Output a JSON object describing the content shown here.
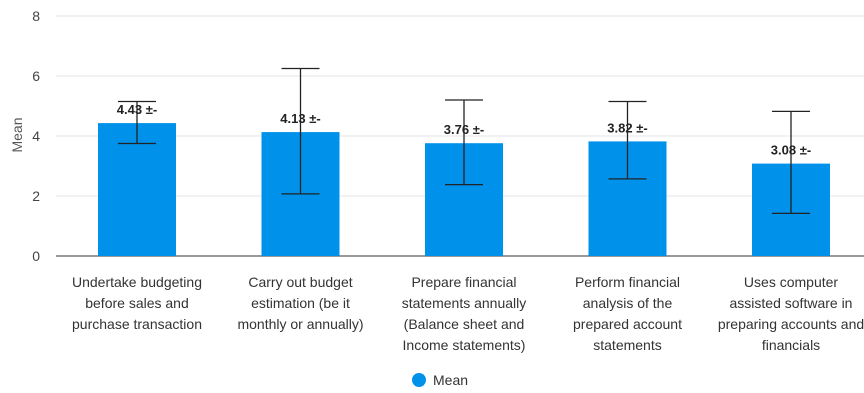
{
  "chart_data": {
    "type": "bar",
    "title": "",
    "xlabel": "",
    "ylabel": "Mean",
    "ylim": [
      0,
      8
    ],
    "yticks": [
      0,
      2,
      4,
      6,
      8
    ],
    "grid": true,
    "legend_position": "bottom",
    "categories": [
      [
        "Undertake budgeting",
        "before sales and",
        "purchase transaction"
      ],
      [
        "Carry out budget",
        "estimation (be it",
        "monthly or annually)"
      ],
      [
        "Prepare financial",
        "statements annually",
        "(Balance sheet and",
        "Income statements)"
      ],
      [
        "Perform financial",
        "analysis of the",
        "prepared account",
        "statements"
      ],
      [
        "Uses computer",
        "assisted software in",
        "preparing accounts and",
        "financials"
      ]
    ],
    "series": [
      {
        "name": "Mean",
        "color": "#0091ea",
        "values": [
          4.43,
          4.13,
          3.76,
          3.82,
          3.08
        ],
        "error_low": [
          3.75,
          2.07,
          2.38,
          2.57,
          1.42
        ],
        "error_high": [
          5.15,
          6.25,
          5.2,
          5.15,
          4.82
        ],
        "data_labels": [
          "4.43 ±-",
          "4.13 ±-",
          "3.76 ±-",
          "3.82 ±-",
          "3.08 ±-"
        ]
      }
    ]
  }
}
